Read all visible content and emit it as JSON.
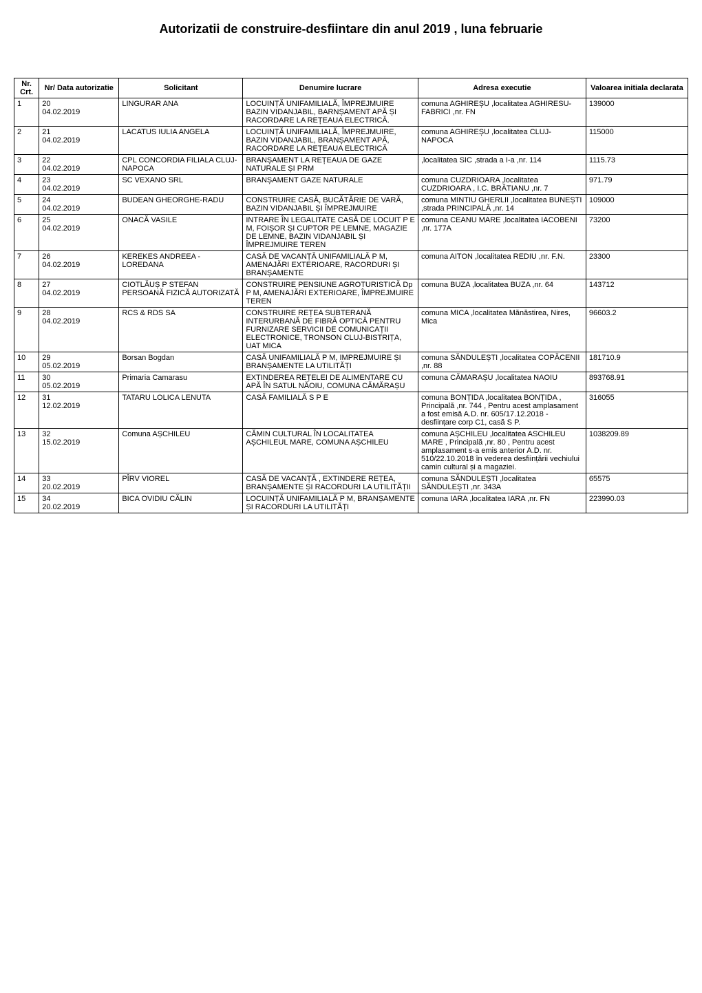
{
  "title": "Autorizatii de construire-desfiintare din anul 2019 , luna februarie",
  "headers": {
    "nr": "Nr. Crt.",
    "data": "Nr/ Data autorizatie",
    "solicitant": "Solicitant",
    "denumire": "Denumire lucrare",
    "adresa": "Adresa executie",
    "valoare": "Valoarea initiala declarata"
  },
  "rows": [
    {
      "nr": "1",
      "data": "20\n04.02.2019",
      "solicitant": "LINGURAR ANA",
      "denumire": "LOCUINȚĂ UNIFAMILIALĂ, ÎMPREJMUIRE BAZIN VIDANJABIL, BARNȘAMENT APĂ ȘI RACORDARE LA REȚEAUA ELECTRICĂ.",
      "adresa": " comuna AGHIREȘU ,localitatea AGHIRESU-FABRICI ,nr. FN",
      "valoare": "139000"
    },
    {
      "nr": "2",
      "data": "21\n04.02.2019",
      "solicitant": "LACATUS IULIA ANGELA",
      "denumire": "LOCUINȚĂ UNIFAMILIALĂ, ÎMPREJMUIRE, BAZIN VIDANJABIL, BRANȘAMENT APĂ, RACORDARE LA REȚEAUA ELECTRICĂ",
      "adresa": " comuna AGHIREȘU ,localitatea CLUJ-NAPOCA",
      "valoare": "115000"
    },
    {
      "nr": "3",
      "data": "22\n04.02.2019",
      "solicitant": "CPL CONCORDIA FILIALA CLUJ-NAPOCA",
      "denumire": "BRANȘAMENT LA REȚEAUA DE GAZE NATURALE ȘI PRM",
      "adresa": " ,localitatea SIC ,strada a I-a ,nr. 114",
      "valoare": "1115.73"
    },
    {
      "nr": "4",
      "data": "23\n04.02.2019",
      "solicitant": "SC VEXANO SRL",
      "denumire": "BRANȘAMENT GAZE NATURALE",
      "adresa": " comuna CUZDRIOARA ,localitatea CUZDRIOARA , I.C. BRĂTIANU ,nr. 7",
      "valoare": "971.79"
    },
    {
      "nr": "5",
      "data": "24\n04.02.2019",
      "solicitant": "BUDEAN GHEORGHE-RADU",
      "denumire": "CONSTRUIRE CASĂ, BUCĂTĂRIE DE VARĂ, BAZIN VIDANJABIL ȘI ÎMPREJMUIRE",
      "adresa": " comuna MINTIU GHERLII ,localitatea BUNEȘTI ,strada PRINCIPALĂ ,nr. 14",
      "valoare": "109000"
    },
    {
      "nr": "6",
      "data": "25\n04.02.2019",
      "solicitant": "ONACĂ VASILE",
      "denumire": "INTRARE ÎN LEGALITATE CASĂ DE LOCUIT P E M, FOIȘOR ȘI CUPTOR PE LEMNE, MAGAZIE DE LEMNE, BAZIN VIDANJABIL ȘI ÎMPREJMUIRE TEREN",
      "adresa": " comuna CEANU MARE ,localitatea IACOBENI ,nr. 177A",
      "valoare": "73200"
    },
    {
      "nr": "7",
      "data": "26\n04.02.2019",
      "solicitant": "KEREKES ANDREEA - LOREDANA",
      "denumire": "CASĂ DE VACANȚĂ UNIFAMILIALĂ P M, AMENAJĂRI EXTERIOARE, RACORDURI ȘI BRANȘAMENTE",
      "adresa": " comuna AITON ,localitatea REDIU ,nr. F.N.",
      "valoare": "23300"
    },
    {
      "nr": "8",
      "data": "27\n04.02.2019",
      "solicitant": "CIOTLĂUȘ P STEFAN PERSOANĂ FIZICĂ AUTORIZATĂ",
      "denumire": "CONSTRUIRE PENSIUNE AGROTURISTICĂ Dp P M, AMENAJĂRI EXTERIOARE, ÎMPREJMUIRE TEREN",
      "adresa": " comuna BUZA ,localitatea BUZA ,nr. 64",
      "valoare": "143712"
    },
    {
      "nr": "9",
      "data": "28\n04.02.2019",
      "solicitant": "RCS & RDS SA",
      "denumire": "CONSTRUIRE REȚEA SUBTERANĂ INTERURBANĂ DE FIBRĂ OPTICĂ PENTRU FURNIZARE SERVICII DE COMUNICAȚII ELECTRONICE, TRONSON CLUJ-BISTRIȚA, UAT MICA",
      "adresa": " comuna MICA ,localitatea Mănăstirea, Nires, Mica",
      "valoare": "96603.2"
    },
    {
      "nr": "10",
      "data": "29\n05.02.2019",
      "solicitant": "Borsan Bogdan",
      "denumire": "CASĂ UNIFAMILIALĂ P M, IMPREJMUIRE ȘI BRANȘAMENTE LA UTILITĂȚI",
      "adresa": " comuna SĂNDULEȘTI ,localitatea COPĂCENII ,nr. 88",
      "valoare": "181710.9"
    },
    {
      "nr": "11",
      "data": "30\n05.02.2019",
      "solicitant": "Primaria Camarasu",
      "denumire": "EXTINDEREA REȚELEI DE ALIMENTARE CU APĂ ÎN SATUL NĂOIU, COMUNA CĂMĂRAȘU",
      "adresa": " comuna CĂMARAȘU ,localitatea NAOIU",
      "valoare": "893768.91"
    },
    {
      "nr": "12",
      "data": "31\n12.02.2019",
      "solicitant": "TATARU LOLICA LENUTA",
      "denumire": "CASĂ FAMILIALĂ S P E",
      "adresa": " comuna BONȚIDA ,localitatea BONȚIDA , Principală ,nr. 744 , Pentru acest amplasament a fost emisă A.D. nr. 605/17.12.2018 - desființare corp C1, casă S P.",
      "valoare": "316055"
    },
    {
      "nr": "13",
      "data": "32\n15.02.2019",
      "solicitant": "Comuna AȘCHILEU",
      "denumire": "CĂMIN CULTURAL ÎN LOCALITATEA AȘCHILEUL MARE, COMUNA AȘCHILEU",
      "adresa": " comuna AȘCHILEU ,localitatea ASCHILEU MARE , Principală ,nr. 80 , Pentru acest amplasament s-a emis anterior A.D. nr. 510/22.10.2018 în vederea desființării vechiului camin cultural și a magaziei.",
      "valoare": "1038209.89"
    },
    {
      "nr": "14",
      "data": "33\n20.02.2019",
      "solicitant": "PÎRV VIOREL",
      "denumire": "CASĂ DE VACANȚĂ , EXTINDERE REȚEA, BRANȘAMENTE ȘI RACORDURI LA UTILITĂȚII",
      "adresa": " comuna SĂNDULEȘTI ,localitatea SĂNDULEȘTI ,nr. 343A",
      "valoare": "65575"
    },
    {
      "nr": "15",
      "data": "34\n20.02.2019",
      "solicitant": "BICA OVIDIU CĂLIN",
      "denumire": "LOCUINȚĂ UNIFAMILIALĂ P M, BRANȘAMENTE ȘI RACORDURI LA UTILITĂȚI",
      "adresa": " comuna IARA ,localitatea IARA ,nr. FN",
      "valoare": "223990.03"
    }
  ]
}
